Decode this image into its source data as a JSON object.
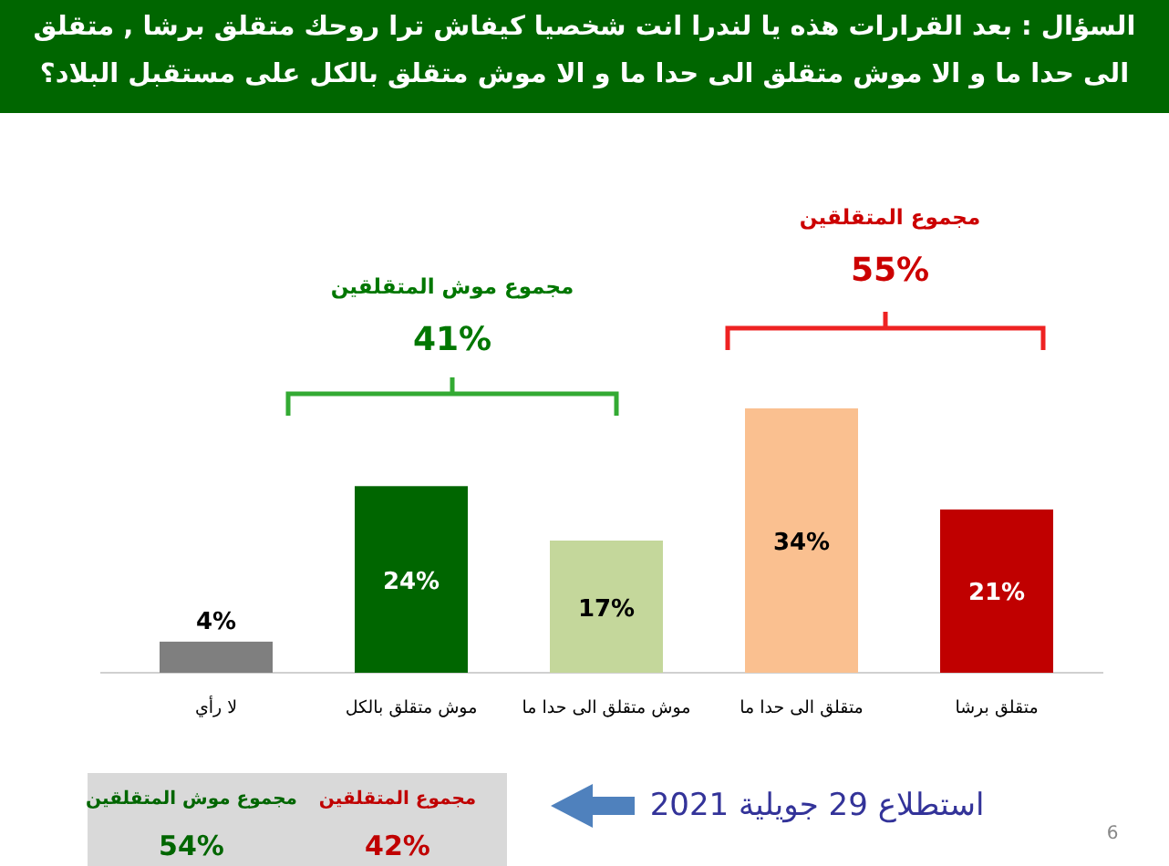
{
  "chart_data": {
    "type": "bar",
    "title": "السؤال : بعد القرارات هذه يا لندرا انت شخصيا كيفاش ترا روحك متقلق برشا , متقلق الى حدا ما و الا موش متقلق الى حدا ما و الا موش متقلق بالكل على مستقبل البلاد؟",
    "categories": [
      "لا رأي",
      "موش متقلق بالكل",
      "موش متقلق الى حدا ما",
      "متقلق الى حدا ما",
      "متقلق برشا"
    ],
    "values": [
      4,
      24,
      17,
      34,
      21
    ],
    "colors": [
      "#7f7f7f",
      "#006600",
      "#c4d79b",
      "#fac090",
      "#c00000"
    ],
    "value_labels": [
      "4%",
      "24%",
      "17%",
      "34%",
      "21%"
    ],
    "annotations": [
      "مجموع موش المتقلقين",
      "41%",
      "مجموع المتقلقين",
      "55%",
      "مجموع موش المتقلقين",
      "54%",
      "مجموع المتقلقين",
      "42%",
      "استطلاع 29 جويلية 2021",
      "6"
    ]
  }
}
